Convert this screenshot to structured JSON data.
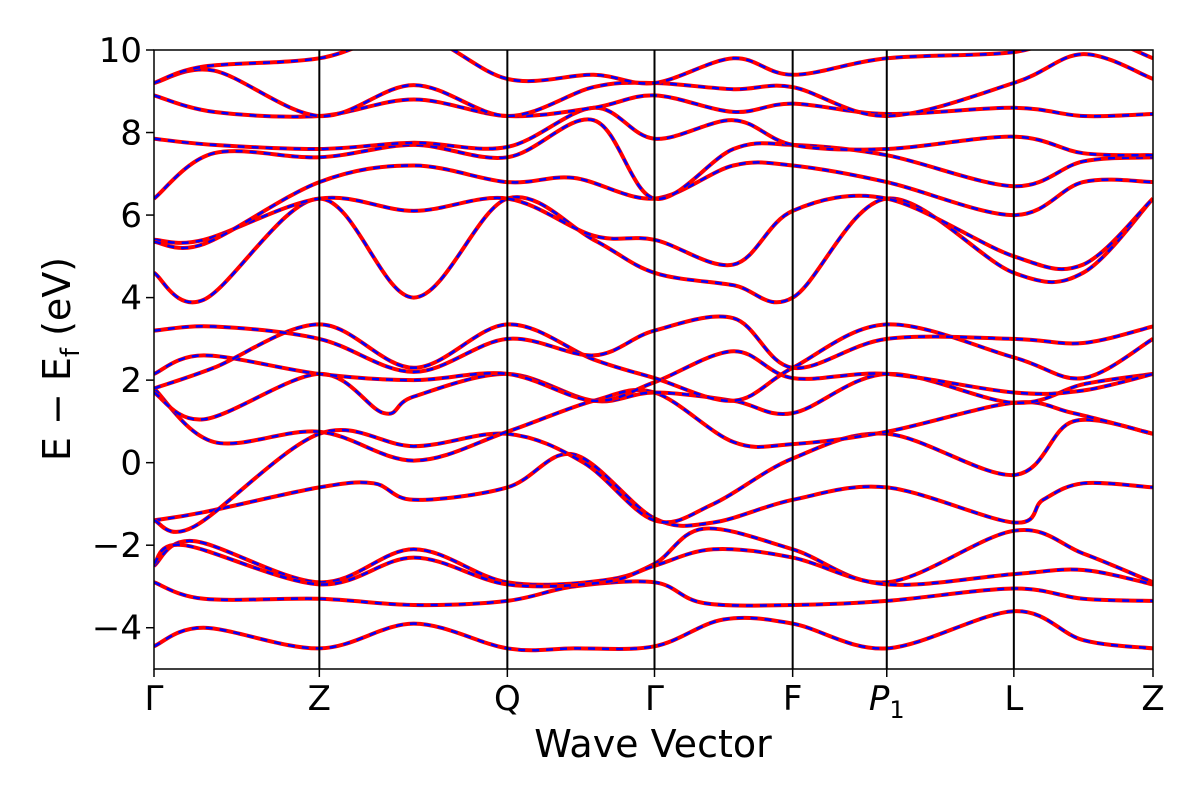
{
  "chart_data": {
    "type": "line",
    "title": "",
    "xlabel": "Wave Vector",
    "ylabel": "E − E_f (eV)",
    "ylabel_parts": {
      "main": "E − E",
      "sub": "f",
      "unit": " (eV)"
    },
    "ylim": [
      -5,
      10
    ],
    "yticks": [
      -4,
      -2,
      0,
      2,
      4,
      6,
      8,
      10
    ],
    "ytick_labels": [
      "−4",
      "−2",
      "0",
      "2",
      "4",
      "6",
      "8",
      "10"
    ],
    "x_range": [
      0,
      1
    ],
    "grid": false,
    "legend": "none",
    "high_symmetry_points": [
      {
        "label": "Γ",
        "x": 0.0
      },
      {
        "label": "Z",
        "x": 0.1655
      },
      {
        "label": "Q",
        "x": 0.3537
      },
      {
        "label": "Γ",
        "x": 0.501
      },
      {
        "label": "F",
        "x": 0.6393
      },
      {
        "label": "P",
        "sub": "1",
        "italic": true,
        "x": 0.7335
      },
      {
        "label": "L",
        "x": 0.8607
      },
      {
        "label": "Z",
        "x": 1.0
      }
    ],
    "series": [
      {
        "name": "",
        "color": "#ff0000",
        "dash": "solid"
      },
      {
        "name": "",
        "color": "#0000ff",
        "dash": "dashed"
      }
    ],
    "bands": [
      {
        "x": [
          0,
          0.05,
          0.1655,
          0.26,
          0.3537,
          0.42,
          0.501,
          0.57,
          0.6393,
          0.7335,
          0.8607,
          0.93,
          1.0
        ],
        "y": [
          -4.45,
          -4.0,
          -4.5,
          -3.9,
          -4.5,
          -4.5,
          -4.45,
          -3.8,
          -3.9,
          -4.5,
          -3.6,
          -4.3,
          -4.5
        ]
      },
      {
        "x": [
          0,
          0.05,
          0.1655,
          0.26,
          0.3537,
          0.42,
          0.501,
          0.55,
          0.6393,
          0.7335,
          0.8607,
          0.93,
          1.0
        ],
        "y": [
          -2.9,
          -3.3,
          -3.3,
          -3.45,
          -3.35,
          -3.0,
          -2.9,
          -3.4,
          -3.45,
          -3.35,
          -3.05,
          -3.3,
          -3.35
        ]
      },
      {
        "x": [
          0,
          0.04,
          0.1655,
          0.26,
          0.3537,
          0.45,
          0.501,
          0.55,
          0.6393,
          0.7335,
          0.8607,
          0.93,
          1.0
        ],
        "y": [
          -2.5,
          -1.9,
          -2.9,
          -2.1,
          -2.9,
          -2.85,
          -2.45,
          -1.6,
          -2.1,
          -2.9,
          -1.65,
          -2.2,
          -2.9
        ]
      },
      {
        "x": [
          0,
          0.03,
          0.1655,
          0.26,
          0.3537,
          0.45,
          0.501,
          0.56,
          0.6393,
          0.7335,
          0.8607,
          0.93,
          1.0
        ],
        "y": [
          -2.45,
          -2.0,
          -2.95,
          -2.3,
          -2.95,
          -2.9,
          -2.5,
          -2.1,
          -2.3,
          -2.95,
          -2.7,
          -2.6,
          -2.95
        ]
      },
      {
        "x": [
          0,
          0.05,
          0.1655,
          0.22,
          0.26,
          0.3537,
          0.42,
          0.501,
          0.56,
          0.6393,
          0.7335,
          0.8607,
          0.89,
          0.93,
          1.0
        ],
        "y": [
          -1.4,
          -1.2,
          -0.6,
          -0.5,
          -0.9,
          -0.6,
          0.2,
          -1.35,
          -1.45,
          -0.9,
          -0.6,
          -1.45,
          -0.9,
          -0.5,
          -0.6
        ]
      },
      {
        "x": [
          0,
          0.04,
          0.1655,
          0.26,
          0.3537,
          0.43,
          0.501,
          0.56,
          0.6393,
          0.7335,
          0.8607,
          0.92,
          1.0
        ],
        "y": [
          -1.4,
          -1.55,
          0.7,
          0.4,
          0.7,
          0.0,
          -1.4,
          -1.0,
          0.1,
          0.7,
          -0.3,
          1.0,
          0.7
        ]
      },
      {
        "x": [
          0,
          0.06,
          0.1655,
          0.26,
          0.3537,
          0.44,
          0.501,
          0.58,
          0.6393,
          0.7335,
          0.8607,
          0.92,
          1.0
        ],
        "y": [
          1.8,
          0.5,
          0.75,
          0.05,
          0.75,
          1.5,
          1.7,
          0.5,
          0.45,
          0.75,
          1.45,
          1.2,
          0.7
        ]
      },
      {
        "x": [
          0,
          0.05,
          0.1655,
          0.23,
          0.26,
          0.3537,
          0.44,
          0.501,
          0.58,
          0.6393,
          0.7335,
          0.8607,
          0.93,
          1.0
        ],
        "y": [
          1.7,
          1.05,
          2.15,
          1.2,
          1.6,
          2.15,
          1.5,
          1.7,
          1.5,
          1.2,
          2.15,
          1.45,
          1.9,
          2.15
        ]
      },
      {
        "x": [
          0,
          0.05,
          0.1655,
          0.26,
          0.3537,
          0.44,
          0.501,
          0.58,
          0.6393,
          0.7335,
          0.8607,
          0.93,
          1.0
        ],
        "y": [
          2.15,
          2.6,
          2.15,
          2.0,
          2.15,
          1.5,
          1.95,
          2.7,
          2.05,
          2.15,
          1.7,
          1.75,
          2.15
        ]
      },
      {
        "x": [
          0,
          0.06,
          0.1655,
          0.26,
          0.3537,
          0.44,
          0.501,
          0.58,
          0.6393,
          0.7335,
          0.8607,
          0.93,
          1.0
        ],
        "y": [
          1.8,
          2.3,
          3.35,
          2.3,
          3.35,
          2.5,
          2.05,
          1.5,
          2.3,
          3.35,
          2.55,
          2.05,
          3.0
        ]
      },
      {
        "x": [
          0,
          0.06,
          0.1655,
          0.26,
          0.3537,
          0.44,
          0.501,
          0.58,
          0.6393,
          0.7335,
          0.8607,
          0.93,
          1.0
        ],
        "y": [
          3.2,
          3.3,
          3.0,
          2.2,
          3.0,
          2.6,
          3.2,
          3.5,
          2.3,
          3.0,
          3.0,
          2.9,
          3.3
        ]
      },
      {
        "x": [
          0,
          0.05,
          0.1655,
          0.26,
          0.3537,
          0.44,
          0.501,
          0.58,
          0.6393,
          0.7335,
          0.8607,
          0.93,
          1.0
        ],
        "y": [
          4.6,
          3.95,
          6.4,
          4.0,
          6.4,
          5.4,
          4.6,
          4.3,
          4.0,
          6.4,
          4.6,
          4.6,
          6.4
        ]
      },
      {
        "x": [
          0,
          0.05,
          0.1655,
          0.26,
          0.3537,
          0.44,
          0.501,
          0.58,
          0.6393,
          0.7335,
          0.8607,
          0.93,
          1.0
        ],
        "y": [
          5.4,
          5.4,
          6.4,
          6.1,
          6.4,
          5.5,
          5.4,
          4.8,
          6.1,
          6.4,
          5.0,
          4.8,
          6.4
        ]
      },
      {
        "x": [
          0,
          0.05,
          0.1655,
          0.26,
          0.3537,
          0.42,
          0.501,
          0.58,
          0.6393,
          0.7335,
          0.8607,
          0.93,
          1.0
        ],
        "y": [
          5.35,
          5.3,
          6.8,
          7.2,
          6.8,
          6.9,
          6.4,
          7.2,
          7.2,
          6.8,
          6.0,
          6.8,
          6.8
        ]
      },
      {
        "x": [
          0,
          0.06,
          0.1655,
          0.26,
          0.3537,
          0.44,
          0.501,
          0.58,
          0.6393,
          0.7335,
          0.8607,
          0.93,
          1.0
        ],
        "y": [
          6.4,
          7.5,
          7.4,
          7.7,
          7.4,
          8.3,
          6.4,
          7.6,
          7.7,
          7.45,
          6.7,
          7.3,
          7.4
        ]
      },
      {
        "x": [
          0,
          0.06,
          0.1655,
          0.26,
          0.3537,
          0.44,
          0.501,
          0.58,
          0.6393,
          0.7335,
          0.8607,
          0.93,
          1.0
        ],
        "y": [
          7.85,
          7.7,
          7.6,
          7.75,
          7.65,
          8.6,
          7.85,
          8.3,
          7.7,
          7.6,
          7.9,
          7.5,
          7.45
        ]
      },
      {
        "x": [
          0,
          0.06,
          0.1655,
          0.26,
          0.3537,
          0.44,
          0.501,
          0.58,
          0.6393,
          0.7335,
          0.8607,
          0.93,
          1.0
        ],
        "y": [
          8.9,
          8.5,
          8.4,
          8.8,
          8.4,
          8.6,
          8.9,
          8.5,
          8.7,
          8.45,
          8.6,
          8.4,
          8.45
        ]
      },
      {
        "x": [
          0,
          0.06,
          0.1655,
          0.26,
          0.3537,
          0.44,
          0.501,
          0.58,
          0.6393,
          0.7335,
          0.8607,
          0.93,
          1.0
        ],
        "y": [
          9.2,
          9.5,
          8.4,
          9.15,
          8.4,
          9.1,
          9.2,
          9.05,
          9.1,
          8.4,
          9.2,
          9.9,
          9.3
        ]
      },
      {
        "x": [
          0,
          0.05,
          0.1655,
          0.26,
          0.3537,
          0.44,
          0.501,
          0.58,
          0.6393,
          0.7335,
          0.8607,
          0.93,
          1.0
        ],
        "y": [
          9.2,
          9.6,
          9.8,
          10.4,
          9.3,
          9.4,
          9.2,
          9.8,
          9.4,
          9.8,
          9.95,
          10.4,
          9.8
        ]
      }
    ]
  }
}
